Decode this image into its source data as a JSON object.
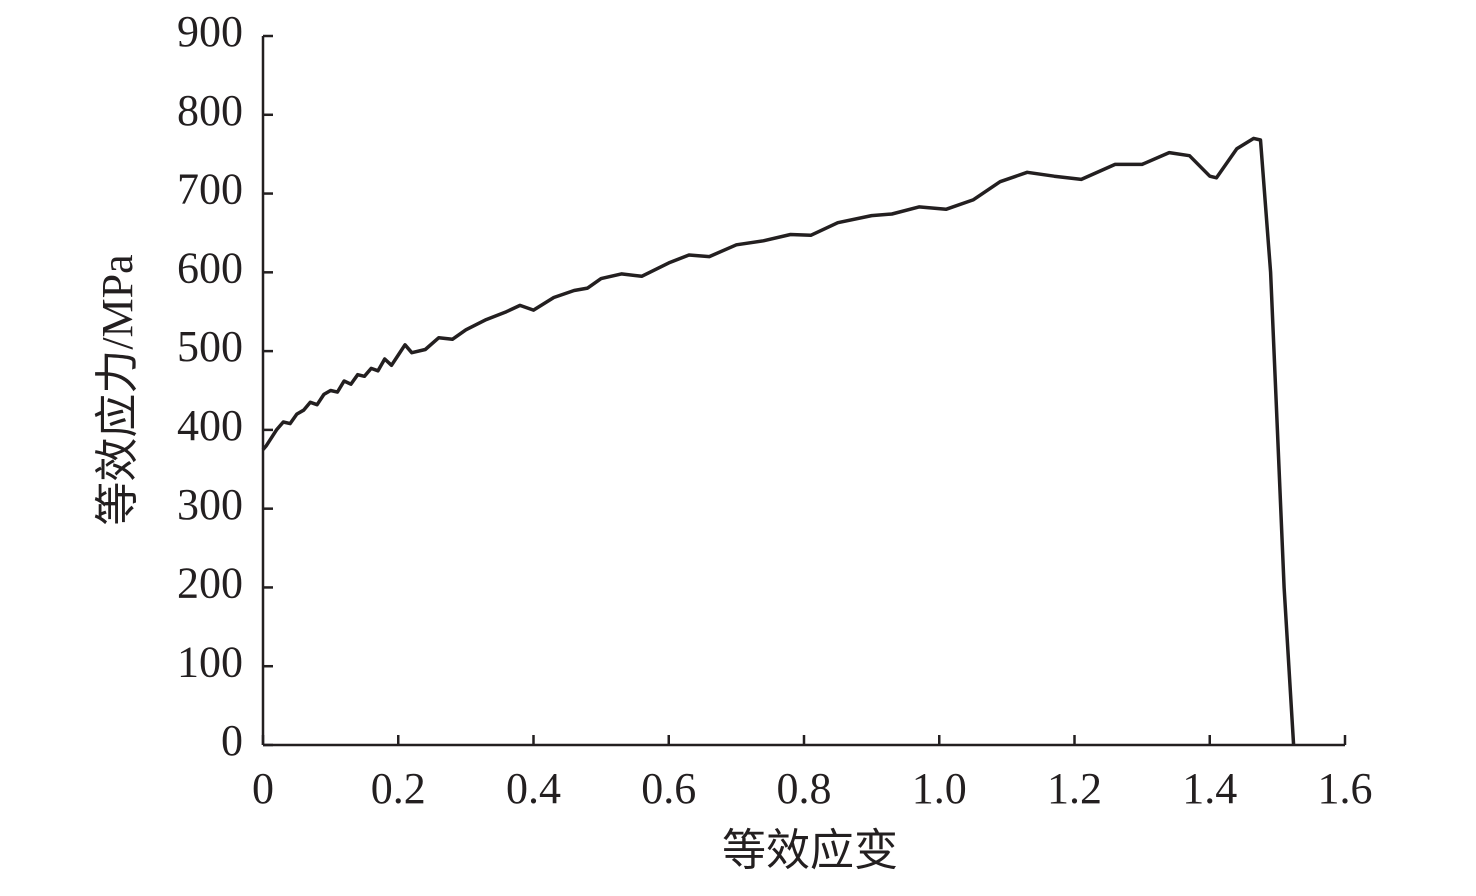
{
  "chart_data": {
    "type": "line",
    "x_label": "等效应变",
    "y_label": "等效应力/MPa",
    "xlim": [
      0,
      1.6
    ],
    "ylim": [
      0,
      900
    ],
    "xticks": [
      0,
      0.2,
      0.4,
      0.6,
      0.8,
      {
        "value": 1,
        "label": "1.0"
      },
      1.2,
      1.4,
      1.6
    ],
    "yticks": [
      0,
      100,
      200,
      300,
      400,
      500,
      600,
      700,
      800,
      900
    ],
    "series": [
      {
        "color": "#231f20",
        "x": [
          0,
          0.005,
          0.02,
          0.03,
          0.04,
          0.05,
          0.06,
          0.07,
          0.08,
          0.09,
          0.1,
          0.11,
          0.12,
          0.13,
          0.14,
          0.15,
          0.16,
          0.17,
          0.18,
          0.19,
          0.2,
          0.21,
          0.22,
          0.24,
          0.26,
          0.28,
          0.3,
          0.33,
          0.36,
          0.38,
          0.4,
          0.43,
          0.46,
          0.48,
          0.5,
          0.53,
          0.56,
          0.6,
          0.63,
          0.66,
          0.7,
          0.74,
          0.78,
          0.81,
          0.85,
          0.9,
          0.93,
          0.97,
          1.01,
          1.05,
          1.09,
          1.13,
          1.17,
          1.21,
          1.26,
          1.3,
          1.34,
          1.37,
          1.4,
          1.41,
          1.44,
          1.465,
          1.475,
          1.49,
          1.5,
          1.51,
          1.524
        ],
        "values": [
          375,
          380,
          400,
          410,
          408,
          420,
          425,
          435,
          432,
          445,
          450,
          448,
          462,
          458,
          470,
          468,
          478,
          475,
          490,
          482,
          495,
          508,
          498,
          502,
          517,
          515,
          527,
          540,
          550,
          558,
          552,
          568,
          577,
          580,
          592,
          598,
          595,
          612,
          622,
          620,
          635,
          640,
          648,
          647,
          663,
          672,
          674,
          683,
          680,
          692,
          715,
          727,
          722,
          718,
          737,
          737,
          752,
          748,
          722,
          720,
          757,
          770,
          768,
          600,
          400,
          200,
          0
        ]
      }
    ]
  }
}
